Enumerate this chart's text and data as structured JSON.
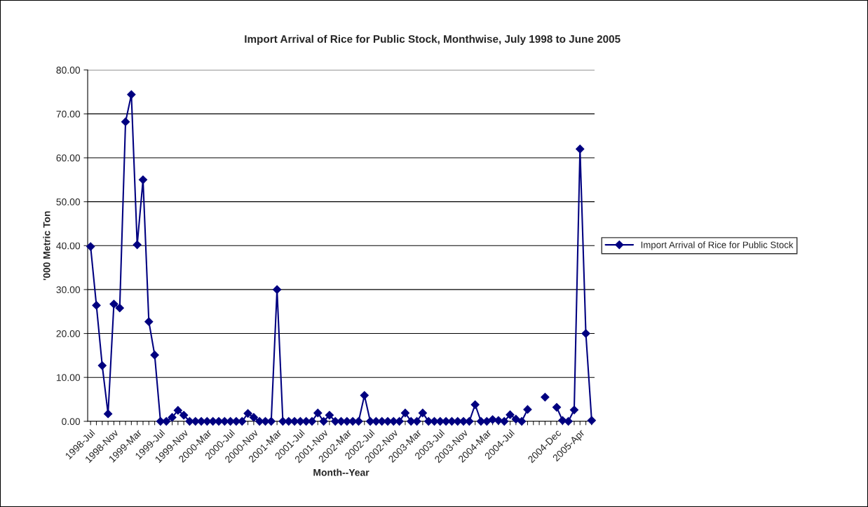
{
  "chart_data": {
    "type": "line",
    "title": "Import Arrival of Rice for Public Stock, Monthwise, July 1998 to June 2005",
    "xlabel": "Month--Year",
    "ylabel": "'000 Metric Ton",
    "categories": [
      "1998-Jul",
      null,
      null,
      null,
      "1998-Nov",
      null,
      null,
      null,
      "1999-Mar",
      null,
      null,
      null,
      "1999-Jul",
      null,
      null,
      null,
      "1999-Nov",
      null,
      null,
      null,
      "2000-Mar",
      null,
      null,
      null,
      "2000-Jul",
      null,
      null,
      null,
      "2000-Nov",
      null,
      null,
      null,
      "2001-Mar",
      null,
      null,
      null,
      "2001-Jul",
      null,
      null,
      null,
      "2001-Nov",
      null,
      null,
      null,
      "2002-Mar",
      null,
      null,
      null,
      "2002-Jul",
      null,
      null,
      null,
      "2002-Nov",
      null,
      null,
      null,
      "2003-Mar",
      null,
      null,
      null,
      "2003-Jul",
      null,
      null,
      null,
      "2003-Nov",
      null,
      null,
      null,
      "2004-Mar",
      null,
      null,
      null,
      "2004-Jul",
      null,
      null,
      null,
      null,
      null,
      null,
      null,
      "2004-Dec",
      null,
      null,
      null,
      "2005-Apr",
      null,
      null
    ],
    "series": [
      {
        "name": "Import Arrival of Rice for Public Stock",
        "color": "#000080",
        "values": [
          39.8,
          26.4,
          12.7,
          1.7,
          26.7,
          25.8,
          68.2,
          74.4,
          40.2,
          55.0,
          22.7,
          15.1,
          0,
          0,
          0.9,
          2.5,
          1.4,
          0,
          0,
          0,
          0,
          0,
          0,
          0,
          0,
          0,
          0,
          1.8,
          0.9,
          0,
          0,
          0,
          30.0,
          0,
          0,
          0,
          0,
          0,
          0,
          1.9,
          0,
          1.4,
          0,
          0,
          0,
          0,
          0,
          5.9,
          0,
          0,
          0,
          0,
          0,
          0,
          1.9,
          0,
          0,
          1.9,
          0,
          0,
          0,
          0,
          0,
          0,
          0,
          0,
          3.8,
          0,
          0,
          0.4,
          0.2,
          0,
          1.5,
          0.5,
          0,
          2.7,
          null,
          null,
          5.5,
          null,
          3.2,
          0.2,
          0,
          2.6,
          62.0,
          20.0,
          0.2
        ]
      }
    ],
    "ylim": [
      0,
      80
    ],
    "yticks": [
      {
        "value": 0,
        "label": "0.00"
      },
      {
        "value": 10,
        "label": "10.00"
      },
      {
        "value": 20,
        "label": "20.00"
      },
      {
        "value": 30,
        "label": "30.00"
      },
      {
        "value": 40,
        "label": "40.00"
      },
      {
        "value": 50,
        "label": "50.00"
      },
      {
        "value": 60,
        "label": "60.00"
      },
      {
        "value": 70,
        "label": "70.00"
      },
      {
        "value": 80,
        "label": "80.00"
      }
    ],
    "grid": "y",
    "legend": "right",
    "marker": "diamond",
    "line_style": "solid"
  }
}
